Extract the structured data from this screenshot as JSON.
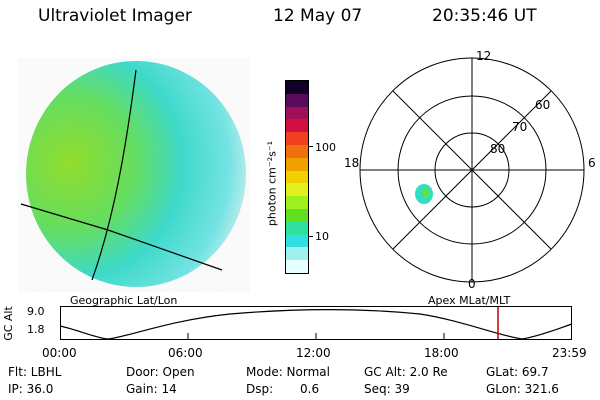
{
  "header": {
    "title": "Ultraviolet Imager",
    "date": "12 May 07",
    "time": "20:35:46 UT"
  },
  "colorbar": {
    "unit_label": "photon cm⁻²s⁻¹",
    "ticks": [
      "100",
      "10"
    ],
    "colors": [
      "#10002a",
      "#5a0a5a",
      "#a0105a",
      "#d01040",
      "#f04020",
      "#f07010",
      "#f0a000",
      "#f0d000",
      "#e0f020",
      "#a0f020",
      "#60e020",
      "#30e0a0",
      "#30e0e0",
      "#a0f0f0",
      "#e8ffff"
    ]
  },
  "left_map": {
    "caption": "Geographic Lat/Lon"
  },
  "right_map": {
    "caption": "Apex  MLat/MLT",
    "mlt_labels": {
      "top": "12",
      "left": "18",
      "right": "6",
      "bottom": "0"
    },
    "lat_labels": [
      "60",
      "70",
      "80"
    ]
  },
  "altitude_plot": {
    "ylabel": "GC Alt",
    "y_ticks": [
      "9.0",
      "1.8"
    ],
    "x_ticks": [
      "00:00",
      "06:00",
      "12:00",
      "18:00",
      "23:59"
    ],
    "current_marker_time": "20:35"
  },
  "info": {
    "flt": "Flt: LBHL",
    "ip": "IP: 36.0",
    "door": "Door: Open",
    "gain": "Gain: 14",
    "mode": "Mode: Normal",
    "dsp_label": "Dsp:",
    "dsp_value": "0.6",
    "gc_alt": "GC Alt: 2.0 Re",
    "seq": "Seq: 39",
    "glat": "GLat:  69.7",
    "glon": "GLon: 321.6"
  }
}
